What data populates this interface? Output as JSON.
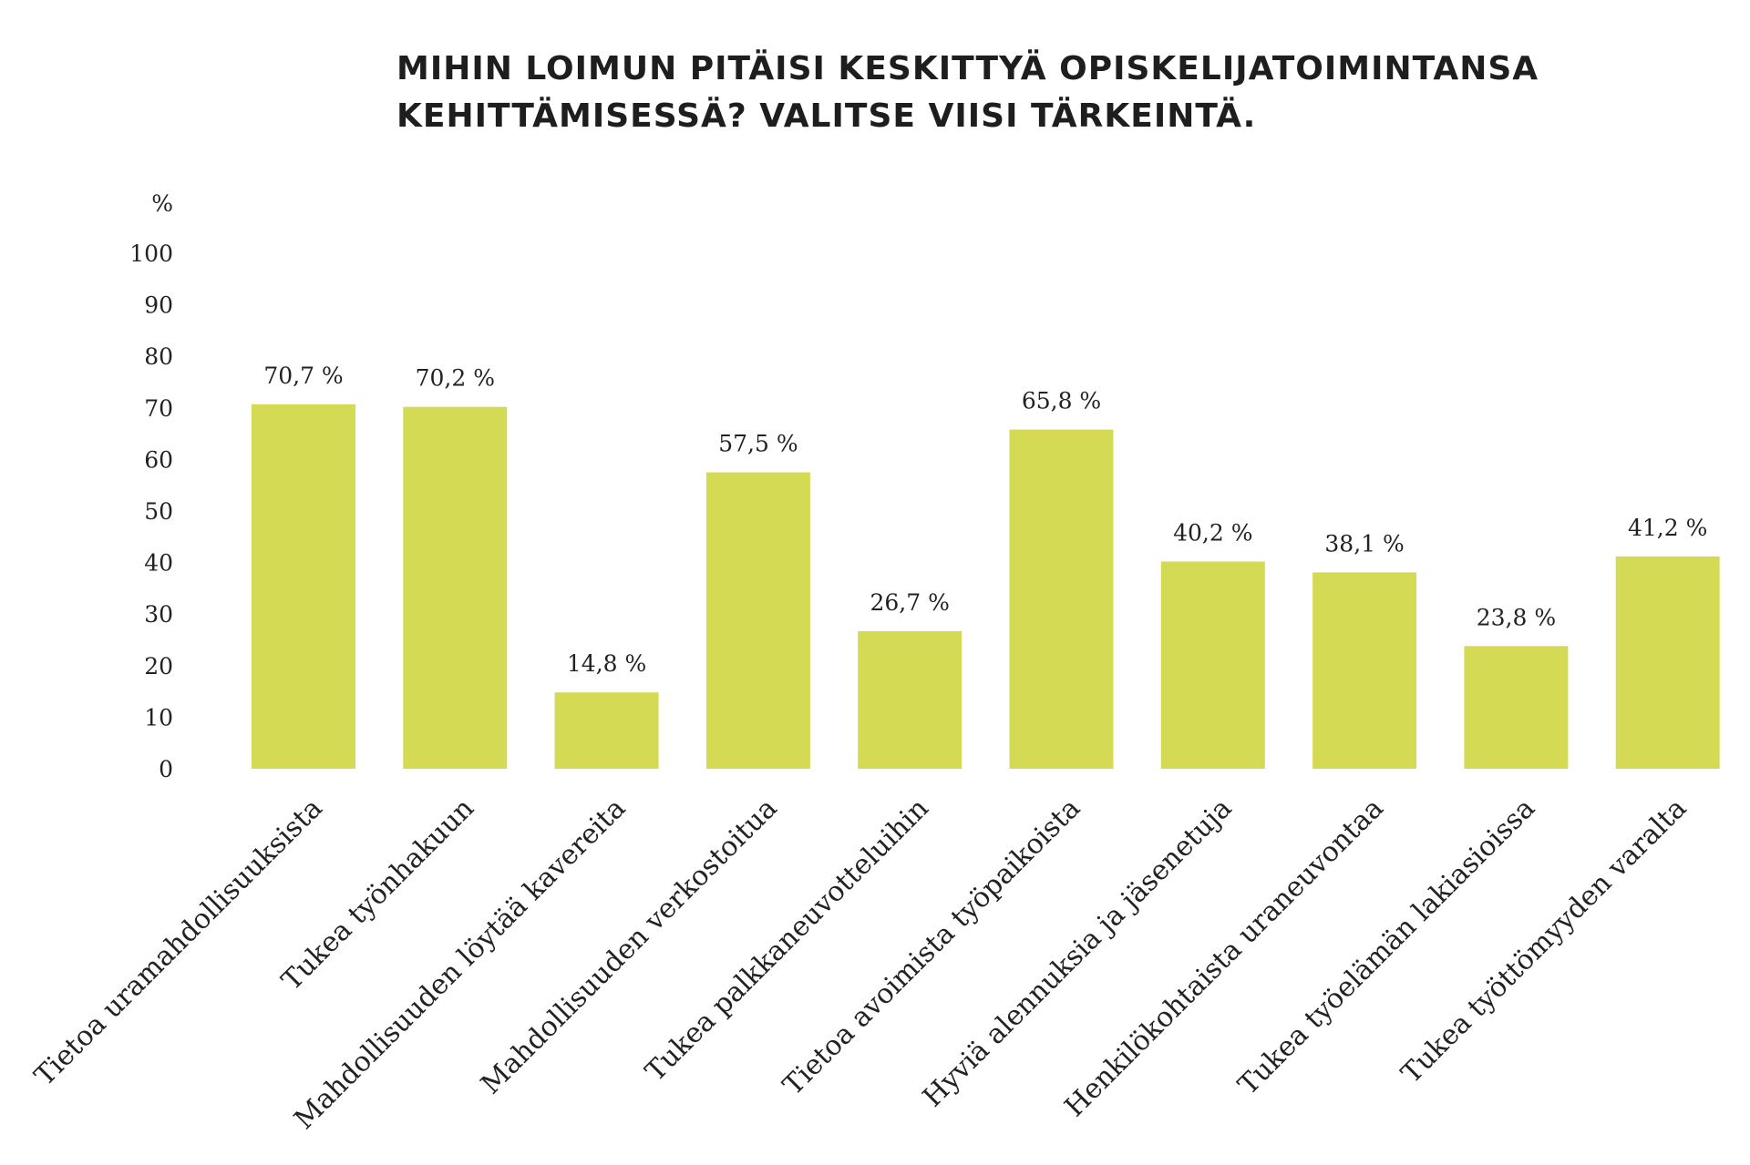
{
  "chart_data": {
    "type": "bar",
    "title": [
      "MIHIN LOIMUN PITÄISI KESKITTYÄ OPISKELIJATOIMINTANSA",
      "KEHITTÄMISESSÄ? VALITSE VIISI TÄRKEINTÄ."
    ],
    "ylabel": "%",
    "ylim": [
      0,
      100
    ],
    "yticks": [
      0,
      10,
      20,
      30,
      40,
      50,
      60,
      70,
      80,
      90,
      100
    ],
    "grid": false,
    "categories": [
      "Tietoa uramahdollisuuksista",
      "Tukea työnhakuun",
      "Mahdollisuuden löytää kavereita",
      "Mahdollisuuden verkostoitua",
      "Tukea palkkaneuvotteluihin",
      "Tietoa avoimista työpaikoista",
      "Hyviä alennuksia ja jäsenetuja",
      "Henkilökohtaista uraneuvontaa",
      "Tukea työelämän lakiasioissa",
      "Tukea työttömyyden varalta"
    ],
    "values": [
      70.7,
      70.2,
      14.8,
      57.5,
      26.7,
      65.8,
      40.2,
      38.1,
      23.8,
      41.2
    ],
    "value_labels": [
      "70,7 %",
      "70,2 %",
      "14,8 %",
      "57,5 %",
      "26,7 %",
      "65,8 %",
      "40,2 %",
      "38,1 %",
      "23,8 %",
      "41,2 %"
    ],
    "bar_color": "#d5da55"
  }
}
